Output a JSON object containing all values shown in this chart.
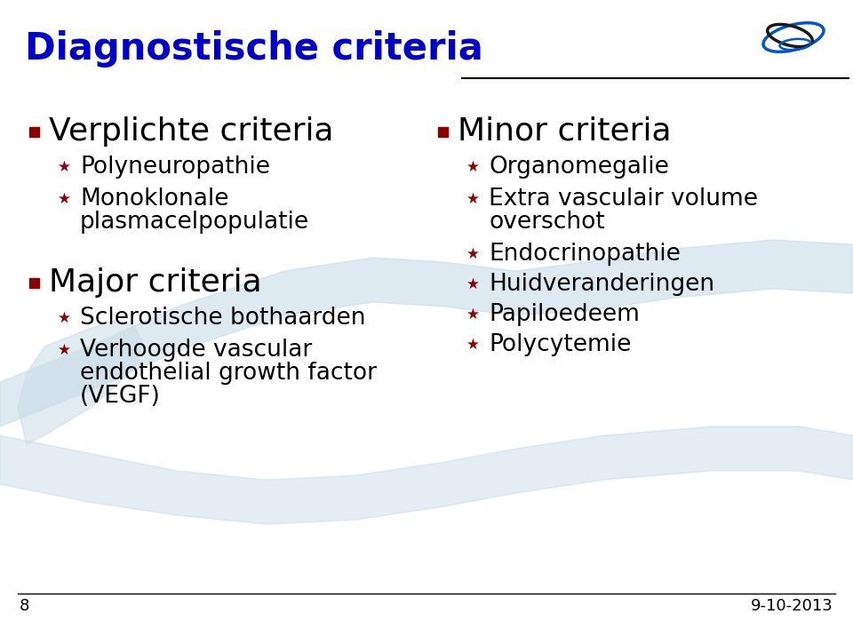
{
  "title": "Diagnostische criteria",
  "title_color": "#0000CC",
  "title_fontsize": 30,
  "bg_color": "#FFFFFF",
  "slide_number": "8",
  "date": "9-10-2013",
  "bullet_square_color": "#8B0000",
  "bullet_star_color": "#8B0000",
  "item_fontsize": 19,
  "header_fontsize": 26,
  "footer_color": "#000000",
  "footer_line_color": "#000000",
  "header_line_color": "#000000",
  "left_sections": [
    {
      "header": "Verplichte criteria",
      "items": [
        "Polyneuropathie",
        "Monoklonale",
        "plasmacelpopulatie"
      ]
    },
    {
      "header": "Major criteria",
      "items": [
        "Sclerotische bothaarden",
        "Verhoogde vascular",
        "endothelial growth factor",
        "(VEGF)"
      ]
    }
  ],
  "right_sections": [
    {
      "header": "Minor criteria",
      "items": [
        "Organomegalie",
        "Extra vasculair volume",
        "overschot",
        "Endocrinopathie",
        "Huidveranderingen",
        "Papiloedeem",
        "Polycytemie"
      ]
    }
  ]
}
